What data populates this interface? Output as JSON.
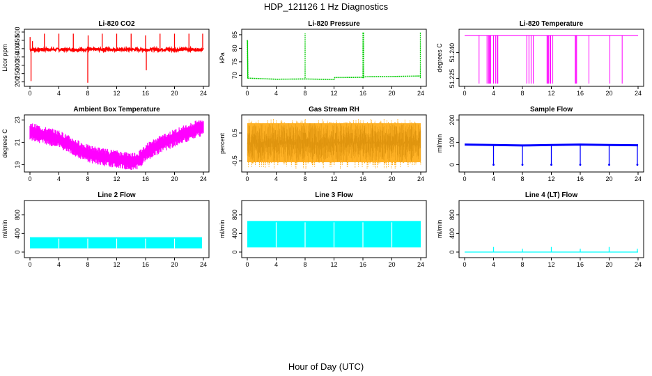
{
  "page": {
    "title": "HDP_121126  1 Hz Diagnostics",
    "xlabel": "Hour of Day (UTC)"
  },
  "colors": {
    "co2": "#ff0000",
    "pressure": "#00cc00",
    "li820_temp": "#ff00ff",
    "box_temp": "#ff00ff",
    "rh": "#ffa500",
    "sample_flow": "#0000ff",
    "line_flow": "#00ffff",
    "axis": "#000000"
  },
  "chart_data": [
    {
      "id": "co2",
      "type": "line",
      "title": "Li-820 CO2",
      "ylabel": "Licor ppm",
      "xlim": [
        0,
        24
      ],
      "xticks": [
        0,
        4,
        8,
        12,
        16,
        20,
        24
      ],
      "ylim": [
        190,
        500
      ],
      "yticks": [
        "200",
        "250",
        "300",
        "350",
        "400",
        "450",
        "500"
      ],
      "color_key": "co2",
      "series": [
        {
          "base": 395,
          "noise": 8,
          "spikes": [
            {
              "x": 0.02,
              "to": 470
            },
            {
              "x": 0.15,
              "to": 205
            },
            {
              "x": 0.35,
              "to": 445
            },
            {
              "x": 2.0,
              "to": 490
            },
            {
              "x": 4.0,
              "to": 490
            },
            {
              "x": 6.0,
              "to": 490
            },
            {
              "x": 8.0,
              "to": 195
            },
            {
              "x": 8.05,
              "to": 480
            },
            {
              "x": 10.0,
              "to": 490
            },
            {
              "x": 12.0,
              "to": 490
            },
            {
              "x": 14.0,
              "to": 490
            },
            {
              "x": 16.0,
              "to": 480
            },
            {
              "x": 16.1,
              "to": 270
            },
            {
              "x": 18.0,
              "to": 490
            },
            {
              "x": 20.0,
              "to": 490
            },
            {
              "x": 22.0,
              "to": 490
            },
            {
              "x": 23.9,
              "to": 490
            }
          ]
        }
      ]
    },
    {
      "id": "pressure",
      "type": "line",
      "title": "Li-820 Pressure",
      "ylabel": "kPa",
      "xlim": [
        0,
        24
      ],
      "xticks": [
        0,
        4,
        8,
        12,
        16,
        20,
        24
      ],
      "ylim": [
        67,
        86
      ],
      "yticks": [
        "70",
        "75",
        "80",
        "85"
      ],
      "color_key": "pressure",
      "series": [
        {
          "points": [
            [
              0,
              83
            ],
            [
              0.1,
              69
            ],
            [
              4,
              68.6
            ],
            [
              8,
              68.7
            ],
            [
              12,
              68.5
            ],
            [
              12.1,
              69.2
            ],
            [
              16,
              69.3
            ],
            [
              16.1,
              69.5
            ],
            [
              20,
              69.6
            ],
            [
              24,
              69.8
            ]
          ],
          "spikes": [
            {
              "x": 0.05,
              "to": 83
            },
            {
              "x": 8.0,
              "to": 85.5
            },
            {
              "x": 16.0,
              "to": 86
            },
            {
              "x": 16.1,
              "to": 86
            },
            {
              "x": 23.95,
              "to": 86
            }
          ]
        }
      ]
    },
    {
      "id": "li820_temp",
      "type": "line",
      "title": "Li-820 Temperature",
      "ylabel": "degrees C",
      "xlim": [
        0,
        24
      ],
      "xticks": [
        0,
        4,
        8,
        12,
        16,
        20,
        24
      ],
      "ylim": [
        51.222,
        51.252
      ],
      "yticks": [
        "51.225",
        "51.240"
      ],
      "color_key": "li820_temp",
      "series": [
        {
          "level": 51.25,
          "drop_to": 51.222,
          "drops": [
            2.0,
            3.1,
            3.3,
            3.4,
            3.5,
            3.6,
            4.0,
            4.3,
            4.5,
            4.6,
            8.6,
            8.9,
            9.2,
            9.5,
            11.4,
            11.5,
            11.6,
            11.8,
            11.9,
            12.2,
            15.3,
            15.4,
            15.5,
            17.2,
            20.1,
            21.8
          ]
        }
      ]
    },
    {
      "id": "box_temp",
      "type": "line",
      "title": "Ambient Box Temperature",
      "ylabel": "degrees C",
      "xlim": [
        0,
        24
      ],
      "xticks": [
        0,
        4,
        8,
        12,
        16,
        20,
        24
      ],
      "ylim": [
        18.6,
        23.2
      ],
      "yticks": [
        "19",
        "21",
        "23"
      ],
      "color_key": "box_temp",
      "series": [
        {
          "band": 0.8,
          "points": [
            [
              0,
              22.0
            ],
            [
              2,
              21.6
            ],
            [
              4,
              21.3
            ],
            [
              6,
              20.6
            ],
            [
              8,
              20.0
            ],
            [
              10,
              19.7
            ],
            [
              12,
              19.5
            ],
            [
              14,
              19.3
            ],
            [
              15,
              19.4
            ],
            [
              16,
              20.1
            ],
            [
              18,
              20.8
            ],
            [
              20,
              21.4
            ],
            [
              22,
              21.9
            ],
            [
              24,
              22.4
            ]
          ]
        }
      ]
    },
    {
      "id": "rh",
      "type": "line",
      "title": "Gas Stream RH",
      "ylabel": "percent",
      "xlim": [
        0,
        24
      ],
      "xticks": [
        0,
        4,
        8,
        12,
        16,
        20,
        24
      ],
      "ylim": [
        -0.8,
        1.05
      ],
      "yticks": [
        "-0.5",
        "0.5"
      ],
      "color_key": "rh",
      "series": [
        {
          "band": [
            -0.55,
            0.85
          ],
          "spikes_max": 1.0,
          "spikes_min": -0.8
        }
      ]
    },
    {
      "id": "sample_flow",
      "type": "line",
      "title": "Sample Flow",
      "ylabel": "ml/min",
      "xlim": [
        0,
        24
      ],
      "xticks": [
        0,
        4,
        8,
        12,
        16,
        20,
        24
      ],
      "ylim": [
        -20,
        210
      ],
      "yticks": [
        "0",
        "100",
        "200"
      ],
      "color_key": "sample_flow",
      "series": [
        {
          "points": [
            [
              0,
              90
            ],
            [
              4,
              88
            ],
            [
              8,
              86
            ],
            [
              12,
              88
            ],
            [
              16,
              90
            ],
            [
              20,
              88
            ],
            [
              24,
              87
            ]
          ],
          "band": 8,
          "dips": [
            {
              "x": 4.0,
              "to": 0
            },
            {
              "x": 8.0,
              "to": 0
            },
            {
              "x": 12.0,
              "to": 0
            },
            {
              "x": 16.0,
              "to": 0
            },
            {
              "x": 20.0,
              "to": 0
            },
            {
              "x": 23.9,
              "to": 0
            }
          ]
        }
      ]
    },
    {
      "id": "line2",
      "type": "area",
      "title": "Line 2 Flow",
      "ylabel": "ml/min",
      "xlim": [
        0,
        24
      ],
      "xticks": [
        0,
        4,
        8,
        12,
        16,
        20,
        24
      ],
      "ylim": [
        -60,
        1050
      ],
      "yticks": [
        "0",
        "400",
        "800"
      ],
      "color_key": "line_flow",
      "series": [
        {
          "band": [
            80,
            320
          ],
          "gaps": [
            4.0,
            8.0,
            12.0,
            16.0,
            20.0
          ],
          "end": 23.8
        }
      ]
    },
    {
      "id": "line3",
      "type": "area",
      "title": "Line 3 Flow",
      "ylabel": "ml/min",
      "xlim": [
        0,
        24
      ],
      "xticks": [
        0,
        4,
        8,
        12,
        16,
        20,
        24
      ],
      "ylim": [
        -60,
        1050
      ],
      "yticks": [
        "0",
        "400",
        "800"
      ],
      "color_key": "line_flow",
      "series": [
        {
          "band": [
            100,
            670
          ],
          "gaps": [
            4.0,
            8.0,
            12.0,
            16.0,
            20.0
          ],
          "end": 24.0
        }
      ]
    },
    {
      "id": "line4",
      "type": "line",
      "title": "Line 4 (LT) Flow",
      "ylabel": "ml/min",
      "xlim": [
        0,
        24
      ],
      "xticks": [
        0,
        4,
        8,
        12,
        16,
        20,
        24
      ],
      "ylim": [
        -60,
        1050
      ],
      "yticks": [
        "0",
        "400",
        "800"
      ],
      "color_key": "line_flow",
      "series": [
        {
          "base": 0,
          "spikes": [
            {
              "x": 4.0,
              "to": 110
            },
            {
              "x": 8.0,
              "to": 70
            },
            {
              "x": 12.0,
              "to": 110
            },
            {
              "x": 16.0,
              "to": 70
            },
            {
              "x": 20.0,
              "to": 110
            },
            {
              "x": 23.9,
              "to": 70
            }
          ]
        }
      ]
    }
  ]
}
